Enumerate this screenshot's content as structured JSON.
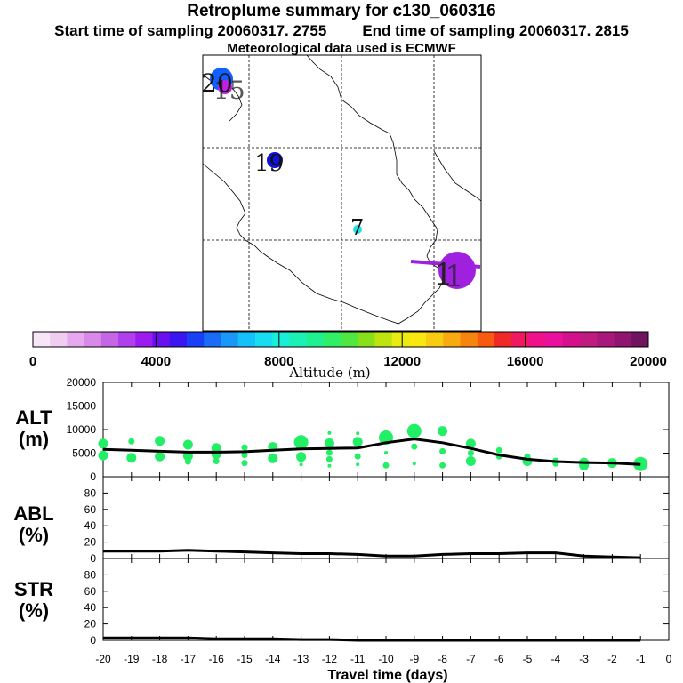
{
  "header": {
    "title": "Retroplume summary for c130_060316",
    "start_label": "Start time of sampling 20060317.  2755",
    "end_label": "End time of sampling 20060317.  2815",
    "met_label": "Meteorological data used is ECMWF"
  },
  "map": {
    "markers": [
      {
        "label": "20",
        "color": "#1060ff",
        "size": "large"
      },
      {
        "label": "15",
        "color": "#c020e0",
        "size": "small"
      },
      {
        "label": "19",
        "color": "#1010e0",
        "size": "medium"
      },
      {
        "label": "7",
        "color": "#20e0e0",
        "size": "small"
      },
      {
        "label": "1",
        "color": "#a020e0",
        "size": "large"
      },
      {
        "label": "1",
        "color": "#a020e0",
        "size": "large"
      }
    ]
  },
  "colorbar": {
    "tick_labels": [
      "0",
      "4000",
      "8000",
      "12000",
      "16000",
      "20000"
    ],
    "label": "Altitude (m)",
    "colors": [
      "#f7e6f7",
      "#f0ccf0",
      "#e6a8ee",
      "#d98ae8",
      "#c466e6",
      "#b040ee",
      "#9c1cf0",
      "#6a10ee",
      "#3a16f0",
      "#1840f5",
      "#1a6cf8",
      "#1a98fa",
      "#16c0fa",
      "#18dcf2",
      "#18eed8",
      "#1cf0b4",
      "#20f090",
      "#30ee66",
      "#50e840",
      "#88e01a",
      "#bee410",
      "#e8ec10",
      "#f8e810",
      "#f8cc10",
      "#f8aa10",
      "#f88410",
      "#f85a10",
      "#f02828",
      "#f01860",
      "#f0108c",
      "#e8109c",
      "#d4108c",
      "#c01c80",
      "#a8187c",
      "#901470",
      "#701460"
    ]
  },
  "chart_data": [
    {
      "type": "line",
      "title": "ALT (m)",
      "ylabel_top": "ALT",
      "ylabel_bottom": "(m)",
      "ylim": [
        0,
        20000
      ],
      "yticks": [
        "0",
        "5000",
        "10000",
        "15000",
        "20000"
      ],
      "x": [
        -20,
        -19,
        -18,
        -17,
        -16,
        -15,
        -14,
        -13,
        -12,
        -11,
        -10,
        -9,
        -8,
        -7,
        -6,
        -5,
        -4,
        -3,
        -2,
        -1
      ],
      "values": [
        5800,
        5600,
        5400,
        5200,
        5200,
        5300,
        5600,
        5900,
        6000,
        6100,
        7200,
        8000,
        7200,
        6000,
        4600,
        3700,
        3200,
        3000,
        2900,
        2600
      ],
      "scatter_color": "#22ee66",
      "scatter": [
        [
          -20.0,
          7000,
          "medium"
        ],
        [
          -20.0,
          4500,
          "medium"
        ],
        [
          -19.0,
          7500,
          "small"
        ],
        [
          -19.0,
          4000,
          "medium"
        ],
        [
          -18.0,
          7600,
          "medium"
        ],
        [
          -18.0,
          4300,
          "medium"
        ],
        [
          -17.0,
          6800,
          "medium"
        ],
        [
          -17.0,
          4400,
          "medium"
        ],
        [
          -17.0,
          3200,
          "small"
        ],
        [
          -16.0,
          6100,
          "medium"
        ],
        [
          -16.0,
          4800,
          "medium"
        ],
        [
          -16.0,
          3300,
          "small"
        ],
        [
          -15.0,
          6200,
          "small"
        ],
        [
          -15.0,
          4600,
          "small"
        ],
        [
          -15.0,
          2900,
          "small"
        ],
        [
          -14.0,
          6300,
          "medium"
        ],
        [
          -14.0,
          3900,
          "medium"
        ],
        [
          -13.0,
          7300,
          "large"
        ],
        [
          -13.0,
          4200,
          "medium"
        ],
        [
          -13.0,
          2600,
          "tiny"
        ],
        [
          -12.0,
          9300,
          "tiny"
        ],
        [
          -12.0,
          7100,
          "medium"
        ],
        [
          -12.0,
          5100,
          "small"
        ],
        [
          -12.0,
          3700,
          "small"
        ],
        [
          -12.0,
          2300,
          "tiny"
        ],
        [
          -11.0,
          9200,
          "tiny"
        ],
        [
          -11.0,
          7400,
          "medium"
        ],
        [
          -11.0,
          4300,
          "small"
        ],
        [
          -11.0,
          2600,
          "tiny"
        ],
        [
          -10.0,
          8300,
          "large"
        ],
        [
          -10.0,
          5100,
          "tiny"
        ],
        [
          -10.0,
          2400,
          "small"
        ],
        [
          -9.0,
          9700,
          "large"
        ],
        [
          -9.0,
          6400,
          "small"
        ],
        [
          -9.0,
          2800,
          "tiny"
        ],
        [
          -8.0,
          9700,
          "medium"
        ],
        [
          -8.0,
          5400,
          "small"
        ],
        [
          -8.0,
          2400,
          "small"
        ],
        [
          -7.0,
          7000,
          "medium"
        ],
        [
          -7.0,
          5000,
          "small"
        ],
        [
          -7.0,
          3300,
          "medium"
        ],
        [
          -6.0,
          5600,
          "small"
        ],
        [
          -6.0,
          4300,
          "small"
        ],
        [
          -5.0,
          4300,
          "small"
        ],
        [
          -5.0,
          3300,
          "medium"
        ],
        [
          -4.0,
          3400,
          "small"
        ],
        [
          -4.0,
          2800,
          "small"
        ],
        [
          -3.0,
          3000,
          "medium"
        ],
        [
          -3.0,
          2400,
          "medium"
        ],
        [
          -2.0,
          2900,
          "medium"
        ],
        [
          -1.0,
          2700,
          "large"
        ]
      ]
    },
    {
      "type": "line",
      "title": "ABL (%)",
      "ylabel_top": "ABL",
      "ylabel_bottom": "(%)",
      "ylim": [
        0,
        100
      ],
      "yticks": [
        "0",
        "20",
        "40",
        "60",
        "80"
      ],
      "x": [
        -20,
        -19,
        -18,
        -17,
        -16,
        -15,
        -14,
        -13,
        -12,
        -11,
        -10,
        -9,
        -8,
        -7,
        -6,
        -5,
        -4,
        -3,
        -2,
        -1
      ],
      "values": [
        9,
        9,
        9,
        10,
        9,
        8,
        7,
        6,
        6,
        5,
        3,
        3,
        5,
        6,
        6,
        7,
        7,
        3,
        2,
        1
      ]
    },
    {
      "type": "line",
      "title": "STR (%)",
      "ylabel_top": "STR",
      "ylabel_bottom": "(%)",
      "ylim": [
        0,
        100
      ],
      "yticks": [
        "0",
        "20",
        "40",
        "60",
        "80"
      ],
      "x": [
        -20,
        -19,
        -18,
        -17,
        -16,
        -15,
        -14,
        -13,
        -12,
        -11,
        -10,
        -9,
        -8,
        -7,
        -6,
        -5,
        -4,
        -3,
        -2,
        -1
      ],
      "values": [
        3,
        3,
        3,
        3,
        2,
        2,
        2,
        1,
        1,
        0,
        0,
        0,
        0,
        0,
        0,
        0,
        0,
        0,
        0,
        0
      ]
    }
  ],
  "x_axis": {
    "tick_labels": [
      "-20",
      "-19",
      "-18",
      "-17",
      "-16",
      "-15",
      "-14",
      "-13",
      "-12",
      "-11",
      "-10",
      "-9",
      "-8",
      "-7",
      "-6",
      "-5",
      "-4",
      "-3",
      "-2",
      "-1",
      "0"
    ],
    "label": "Travel time (days)"
  }
}
